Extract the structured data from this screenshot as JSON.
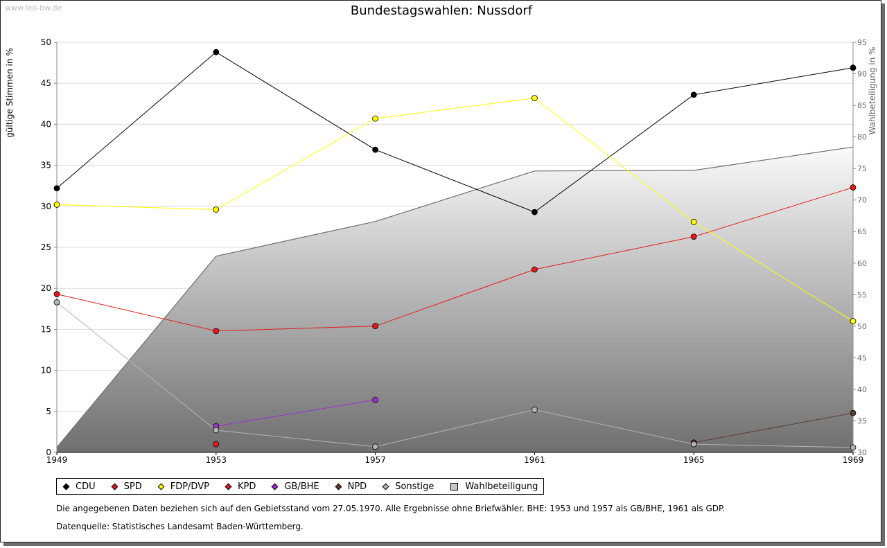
{
  "watermark": "www.leo-bw.de",
  "notes": {
    "line1": "Die angegebenen Daten beziehen sich auf den Gebietsstand vom 27.05.1970. Alle Ergebnisse ohne Briefwähler. BHE: 1953 und 1957 als GB/BHE, 1961 als GDP.",
    "line2": "Datenquelle: Statistisches Landesamt Baden-Württemberg."
  },
  "chart_data": {
    "type": "line",
    "title": "Bundestagswahlen: Nussdorf",
    "xlabel": "",
    "ylabel": "gültige Stimmen in %",
    "ylabel_right": "Wahlbeteiligung in %",
    "categories": [
      "1949",
      "1953",
      "1957",
      "1961",
      "1965",
      "1969"
    ],
    "ylim": [
      0,
      50
    ],
    "yticks": [
      0,
      5,
      10,
      15,
      20,
      25,
      30,
      35,
      40,
      45,
      50
    ],
    "ylim_right": [
      30,
      95
    ],
    "yticks_right": [
      30,
      35,
      40,
      45,
      50,
      55,
      60,
      65,
      70,
      75,
      80,
      85,
      90,
      95
    ],
    "grid": true,
    "legend_position": "bottom",
    "series": [
      {
        "name": "CDU",
        "color": "#000000",
        "values": [
          32.2,
          48.8,
          36.9,
          29.3,
          43.6,
          46.9
        ]
      },
      {
        "name": "SPD",
        "color": "#e41a1a",
        "values": [
          19.3,
          14.8,
          15.4,
          22.3,
          26.3,
          32.3
        ]
      },
      {
        "name": "FDP/DVP",
        "color": "#ffff00",
        "values": [
          30.2,
          29.6,
          40.7,
          43.2,
          28.1,
          16.0
        ]
      },
      {
        "name": "KPD",
        "color": "#e41a1a",
        "values": [
          null,
          1.0,
          null,
          null,
          null,
          null
        ],
        "no_line": true
      },
      {
        "name": "GB/BHE",
        "color": "#9b30d9",
        "values": [
          null,
          3.2,
          6.4,
          null,
          null,
          null
        ]
      },
      {
        "name": "NPD",
        "color": "#5c4033",
        "values": [
          null,
          null,
          null,
          null,
          1.2,
          4.8
        ]
      },
      {
        "name": "Sonstige",
        "color": "#b4b4b4",
        "values": [
          18.3,
          2.7,
          0.7,
          5.2,
          1.0,
          0.6
        ]
      },
      {
        "name": "Wahlbeteiligung",
        "color": "#c8c8c8",
        "type": "area",
        "axis": "right",
        "values": [
          30.8,
          61.1,
          66.6,
          74.6,
          74.7,
          78.4
        ]
      }
    ]
  }
}
